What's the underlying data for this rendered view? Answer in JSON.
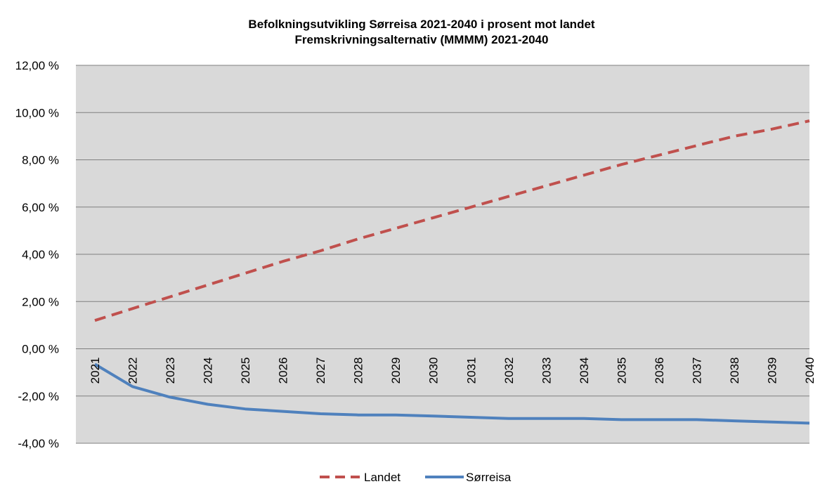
{
  "chart_data": {
    "type": "line",
    "title": "Befolkningsutvikling  Sørreisa 2021-2040  i prosent mot landet",
    "subtitle": "Fremskrivningsalternativ  (MMMM)  2021-2040",
    "xlabel": "",
    "ylabel": "",
    "categories": [
      "2021",
      "2022",
      "2023",
      "2024",
      "2025",
      "2026",
      "2027",
      "2028",
      "2029",
      "2030",
      "2031",
      "2032",
      "2033",
      "2034",
      "2035",
      "2036",
      "2037",
      "2038",
      "2039",
      "2040"
    ],
    "ylim": [
      -4,
      12
    ],
    "yticks": [
      12,
      10,
      8,
      6,
      4,
      2,
      0,
      -2,
      -4
    ],
    "ytick_labels": [
      "12,00 %",
      "10,00 %",
      "8,00 %",
      "6,00 %",
      "4,00 %",
      "2,00 %",
      "0,00 %",
      "-2,00 %",
      "-4,00 %"
    ],
    "grid": true,
    "legend_position": "bottom",
    "series": [
      {
        "name": "Landet",
        "color": "#c0504d",
        "style": "dashed",
        "values": [
          1.2,
          1.7,
          2.2,
          2.7,
          3.2,
          3.7,
          4.15,
          4.65,
          5.1,
          5.55,
          6.0,
          6.45,
          6.9,
          7.35,
          7.8,
          8.2,
          8.6,
          9.0,
          9.3,
          9.65
        ]
      },
      {
        "name": "Sørreisa",
        "color": "#4f81bd",
        "style": "solid",
        "values": [
          -0.65,
          -1.6,
          -2.05,
          -2.35,
          -2.55,
          -2.65,
          -2.75,
          -2.8,
          -2.8,
          -2.85,
          -2.9,
          -2.95,
          -2.95,
          -2.95,
          -3.0,
          -3.0,
          -3.0,
          -3.05,
          -3.1,
          -3.15
        ]
      }
    ]
  }
}
